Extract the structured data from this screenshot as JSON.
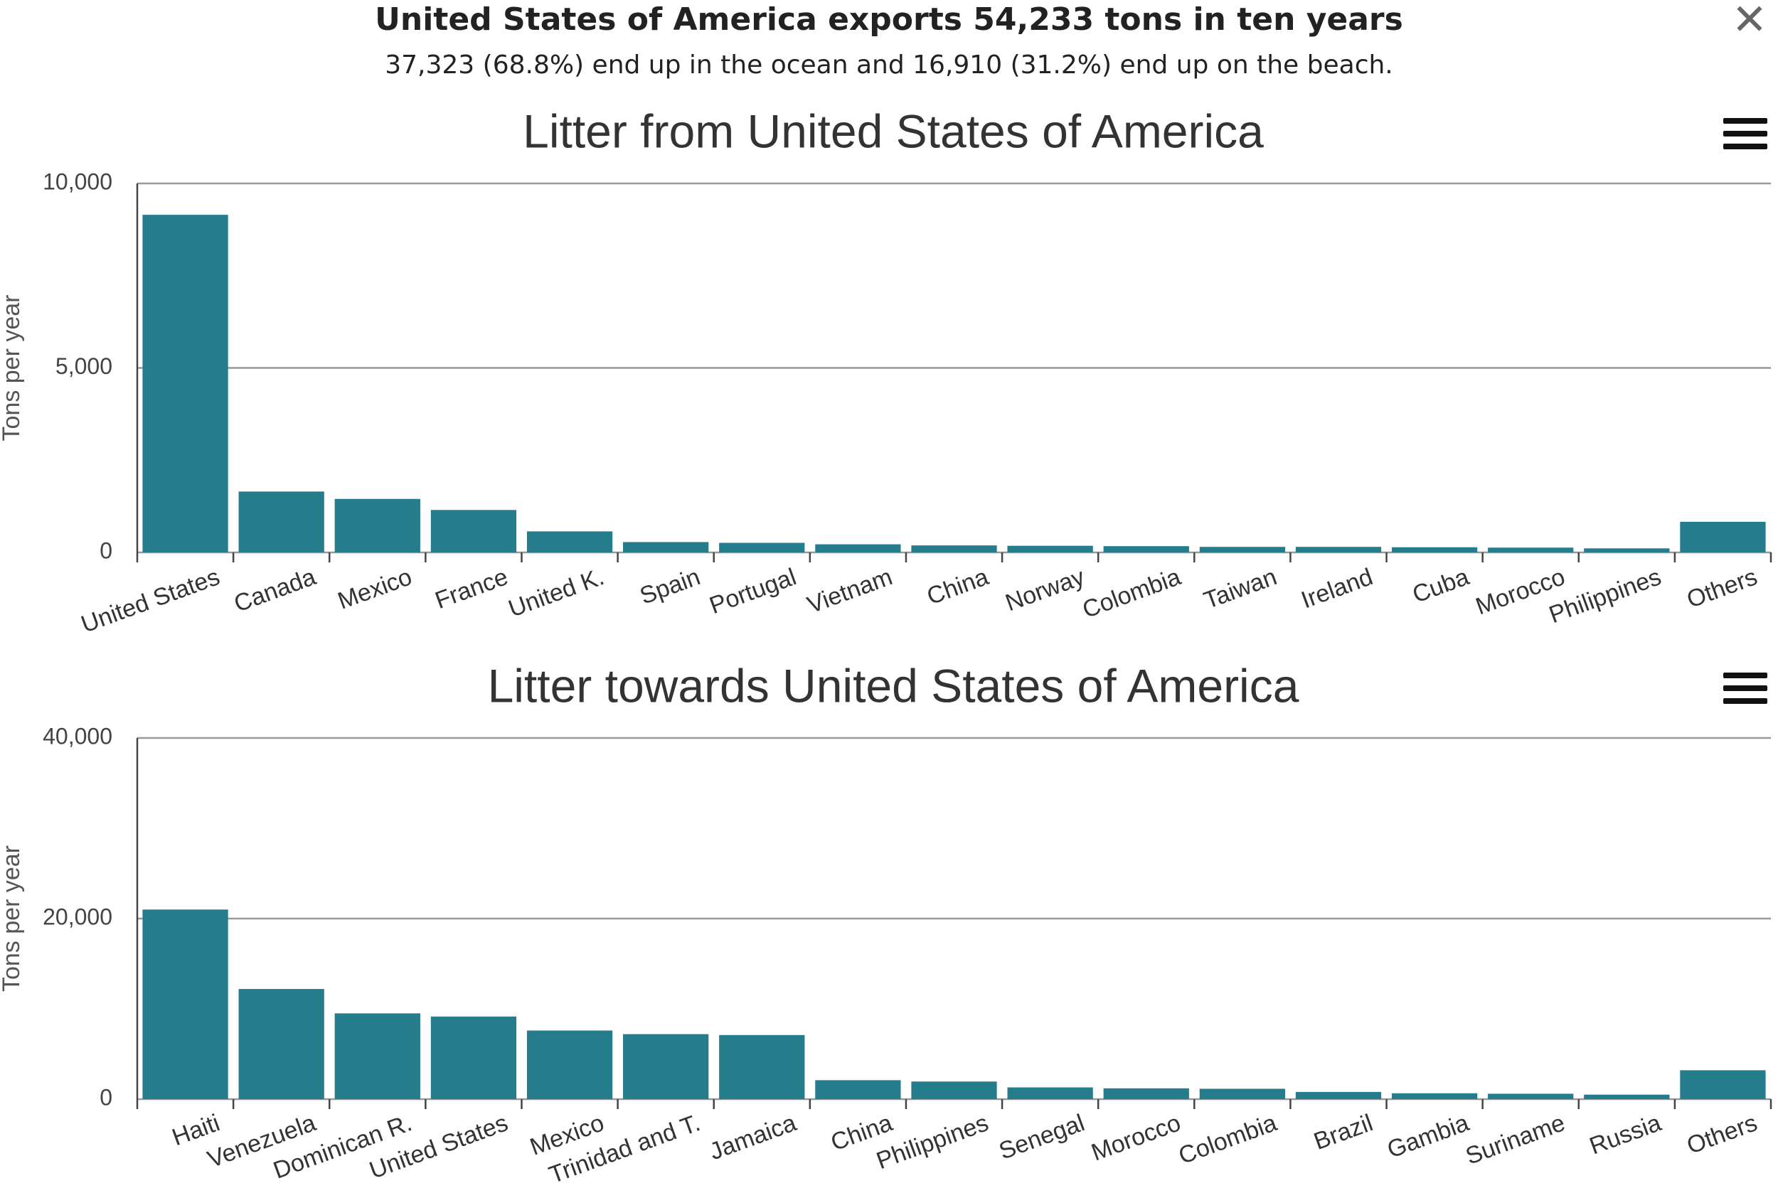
{
  "header": {
    "title": "United States of America exports 54,233 tons in ten years",
    "subtitle": "37,323 (68.8%) end up in the ocean and 16,910 (31.2%) end up on the beach.",
    "close_icon": "close-icon"
  },
  "menu_icon": "hamburger-menu-icon",
  "bar_color": "#257c8b",
  "chart_data": [
    {
      "type": "bar",
      "title": "Litter from United States of America",
      "xlabel": "",
      "ylabel": "Tons per year",
      "ylim": [
        0,
        10000
      ],
      "yticks": [
        0,
        5000,
        10000
      ],
      "ytick_labels": [
        "0",
        "5,000",
        "10,000"
      ],
      "grid": true,
      "categories": [
        "United States",
        "Canada",
        "Mexico",
        "France",
        "United K.",
        "Spain",
        "Portugal",
        "Vietnam",
        "China",
        "Norway",
        "Colombia",
        "Taiwan",
        "Ireland",
        "Cuba",
        "Morocco",
        "Philippines",
        "Others"
      ],
      "values": [
        9150,
        1650,
        1450,
        1150,
        570,
        280,
        260,
        220,
        190,
        180,
        170,
        150,
        150,
        140,
        130,
        110,
        830
      ]
    },
    {
      "type": "bar",
      "title": "Litter towards United States of America",
      "xlabel": "",
      "ylabel": "Tons per year",
      "ylim": [
        0,
        40000
      ],
      "yticks": [
        0,
        20000,
        40000
      ],
      "ytick_labels": [
        "0",
        "20,000",
        "40,000"
      ],
      "grid": true,
      "categories": [
        "Haiti",
        "Venezuela",
        "Dominican R.",
        "United States",
        "Mexico",
        "Trinidad and T.",
        "Jamaica",
        "China",
        "Philippines",
        "Senegal",
        "Morocco",
        "Colombia",
        "Brazil",
        "Gambia",
        "Suriname",
        "Russia",
        "Others"
      ],
      "values": [
        21000,
        12200,
        9500,
        9150,
        7600,
        7200,
        7100,
        2100,
        1950,
        1300,
        1200,
        1150,
        800,
        650,
        600,
        500,
        3200
      ]
    }
  ]
}
